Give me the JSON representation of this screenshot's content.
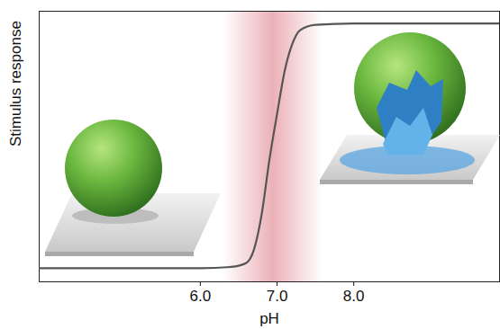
{
  "chart_data": {
    "type": "line",
    "xlabel": "pH",
    "ylabel": "Stimulus response",
    "x": [
      3.9,
      6.0,
      6.4,
      6.6,
      6.7,
      6.8,
      6.9,
      7.0,
      7.1,
      7.2,
      7.3,
      7.5,
      8.0,
      9.9
    ],
    "values": [
      0.05,
      0.05,
      0.055,
      0.07,
      0.12,
      0.25,
      0.45,
      0.62,
      0.78,
      0.88,
      0.93,
      0.95,
      0.955,
      0.955
    ],
    "color": "#555555",
    "xlim": [
      3.9,
      9.9
    ],
    "xticks": [
      6,
      7,
      8
    ],
    "ylim": [
      0,
      1
    ],
    "tick_labels": "x",
    "grid": false,
    "highlight_range": [
      6.3,
      7.6
    ]
  }
}
